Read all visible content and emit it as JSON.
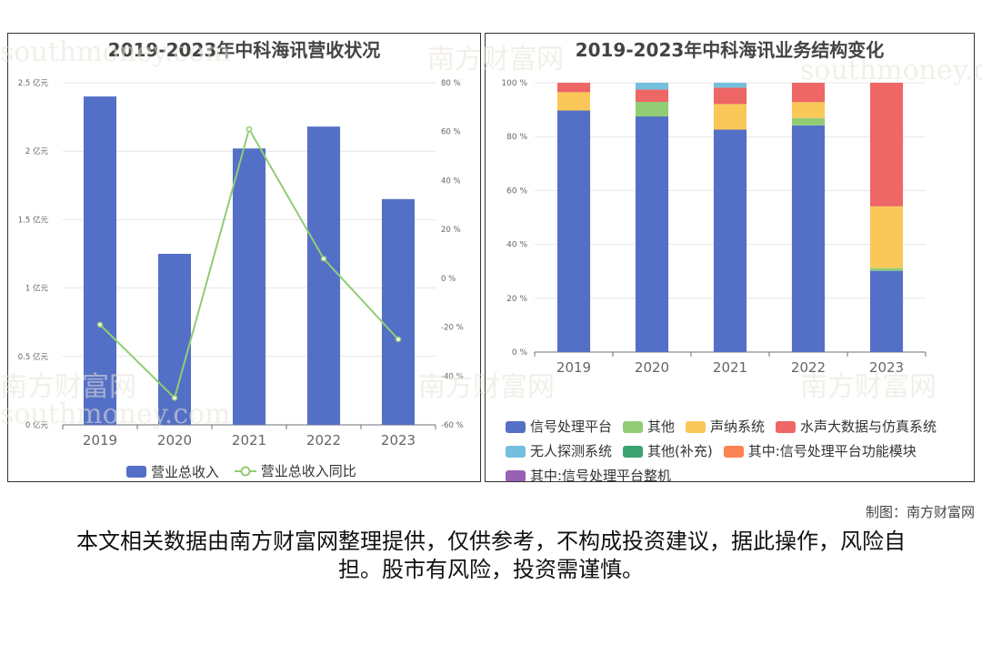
{
  "left_chart": {
    "title": "2019-2023年中科海讯营收状况",
    "left_ticks": [
      "0 亿元",
      "0.5 亿元",
      "1 亿元",
      "1.5 亿元",
      "2 亿元",
      "2.5 亿元"
    ],
    "right_ticks": [
      "-60 %",
      "-40 %",
      "-20 %",
      "0 %",
      "20 %",
      "40 %",
      "60 %",
      "80 %"
    ],
    "legend": {
      "bar": "营业总收入",
      "line": "营业总收入同比"
    }
  },
  "right_chart": {
    "title": "2019-2023年中科海讯业务结构变化",
    "y_ticks": [
      "0 %",
      "20 %",
      "40 %",
      "60 %",
      "80 %",
      "100 %"
    ]
  },
  "credit": "制图：南方财富网",
  "disclaimer": "本文相关数据由南方财富网整理提供，仅供参考，不构成投资建议，据此操作，风险自担。股市有风险，投资需谨慎。",
  "watermark": {
    "cn": "南方财富网",
    "en": "southmoney.com"
  },
  "colors": {
    "bar": "#5470c6",
    "line": "#91cc75"
  },
  "chart_data": [
    {
      "type": "bar",
      "title": "2019-2023年中科海讯营收状况",
      "categories": [
        "2019",
        "2020",
        "2021",
        "2022",
        "2023"
      ],
      "series": [
        {
          "name": "营业总收入",
          "type": "bar",
          "axis": "left",
          "values": [
            2.4,
            1.25,
            2.02,
            2.18,
            1.65
          ]
        },
        {
          "name": "营业总收入同比",
          "type": "line",
          "axis": "right",
          "values": [
            -19,
            -49,
            61,
            8,
            -25
          ]
        }
      ],
      "ylim_left": [
        0,
        2.5
      ],
      "ylim_right": [
        -60,
        80
      ],
      "legend_position": "bottom",
      "grid": true
    },
    {
      "type": "bar",
      "stacked": true,
      "title": "2019-2023年中科海讯业务结构变化",
      "categories": [
        "2019",
        "2020",
        "2021",
        "2022",
        "2023"
      ],
      "ylim": [
        0,
        100
      ],
      "legend_position": "bottom",
      "grid": true,
      "series": [
        {
          "name": "信号处理平台",
          "color": "#5470c6",
          "values": [
            89.7,
            87.5,
            82.6,
            84.2,
            30.2
          ]
        },
        {
          "name": "其他",
          "color": "#91cc75",
          "values": [
            0,
            5.4,
            0,
            2.7,
            1.0
          ]
        },
        {
          "name": "声纳系统",
          "color": "#fac858",
          "values": [
            6.8,
            0,
            9.5,
            5.9,
            22.9
          ]
        },
        {
          "name": "水声大数据与仿真系统",
          "color": "#ee6666",
          "values": [
            3.5,
            4.6,
            6.1,
            7.2,
            45.9
          ]
        },
        {
          "name": "无人探测系统",
          "color": "#73c0de",
          "values": [
            0,
            2.5,
            1.8,
            0,
            0
          ]
        },
        {
          "name": "其他(补充)",
          "color": "#3ba272",
          "values": [
            0,
            0,
            0,
            0,
            0
          ]
        },
        {
          "name": "其中:信号处理平台功能模块",
          "color": "#fc8452",
          "values": [
            0,
            0,
            0,
            0,
            0
          ]
        },
        {
          "name": "其中:信号处理平台整机",
          "color": "#9a60b4",
          "values": [
            0,
            0,
            0,
            0,
            0
          ]
        }
      ]
    }
  ]
}
